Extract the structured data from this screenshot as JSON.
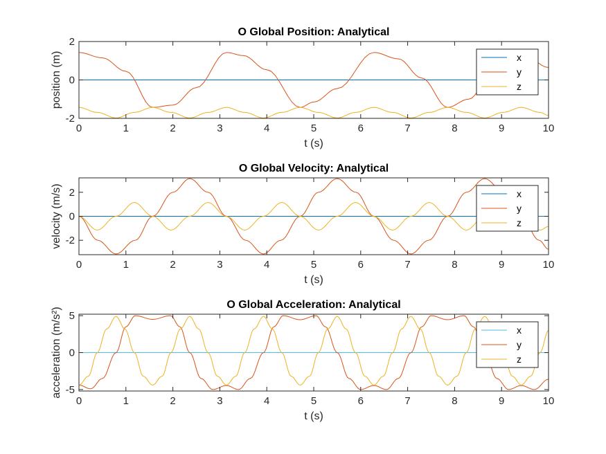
{
  "colors": {
    "x": "#0072BD",
    "y": "#D95319",
    "z": "#EDB120",
    "x_accel": "#4DBEEE",
    "axes": "#262626",
    "background": "#ffffff"
  },
  "chart_data": [
    {
      "type": "line",
      "title": "O Global Position: Analytical",
      "xlabel": "t (s)",
      "ylabel": "position (m)",
      "xlim": [
        0,
        10
      ],
      "ylim": [
        -2,
        2
      ],
      "xticks": [
        0,
        1,
        2,
        3,
        4,
        5,
        6,
        7,
        8,
        9,
        10
      ],
      "yticks": [
        -2,
        0,
        2
      ],
      "xtick_labels": [
        "0",
        "1",
        "2",
        "3",
        "4",
        "5",
        "6",
        "7",
        "8",
        "9",
        "10"
      ],
      "ytick_labels": [
        "-2",
        "0",
        "2"
      ],
      "legend": {
        "entries": [
          "x",
          "y",
          "z"
        ],
        "placement": "top-right"
      },
      "series": [
        {
          "name": "x",
          "x": [
            0,
            10
          ],
          "y": [
            0,
            0
          ]
        },
        {
          "name": "y",
          "x": [
            0,
            0.5,
            1.0,
            1.57,
            2.0,
            2.5,
            3.14,
            3.5,
            4.0,
            4.71,
            5.0,
            5.5,
            6.28,
            6.8,
            7.3,
            7.85,
            8.3,
            8.8,
            9.42,
            10.0
          ],
          "y": [
            1.43,
            1.15,
            0.45,
            -1.43,
            -1.31,
            -0.4,
            1.43,
            1.27,
            0.53,
            -1.43,
            -1.15,
            -0.45,
            1.43,
            1.1,
            0.1,
            -1.43,
            -1.0,
            0.3,
            1.43,
            0.65
          ]
        },
        {
          "name": "z",
          "x": [
            0,
            0.39,
            0.79,
            1.18,
            1.57,
            1.96,
            2.36,
            2.75,
            3.14,
            3.53,
            3.93,
            4.32,
            4.71,
            5.1,
            5.5,
            5.89,
            6.28,
            6.68,
            7.07,
            7.46,
            7.85,
            8.25,
            8.64,
            9.03,
            9.42,
            9.82,
            10.0
          ],
          "y": [
            -1.43,
            -1.69,
            -1.98,
            -1.69,
            -1.43,
            -1.69,
            -1.98,
            -1.69,
            -1.43,
            -1.69,
            -1.98,
            -1.69,
            -1.43,
            -1.69,
            -1.98,
            -1.69,
            -1.43,
            -1.69,
            -1.98,
            -1.69,
            -1.43,
            -1.69,
            -1.98,
            -1.69,
            -1.43,
            -1.69,
            -1.85
          ]
        }
      ]
    },
    {
      "type": "line",
      "title": "O Global Velocity: Analytical",
      "xlabel": "t (s)",
      "ylabel": "velocity (m/s)",
      "xlim": [
        0,
        10
      ],
      "ylim": [
        -3.2,
        3.2
      ],
      "xticks": [
        0,
        1,
        2,
        3,
        4,
        5,
        6,
        7,
        8,
        9,
        10
      ],
      "yticks": [
        -2,
        0,
        2
      ],
      "xtick_labels": [
        "0",
        "1",
        "2",
        "3",
        "4",
        "5",
        "6",
        "7",
        "8",
        "9",
        "10"
      ],
      "ytick_labels": [
        "-2",
        "0",
        "2"
      ],
      "legend": {
        "entries": [
          "x",
          "y",
          "z"
        ],
        "placement": "top-right"
      },
      "series": [
        {
          "name": "x",
          "x": [
            0,
            10
          ],
          "y": [
            0,
            0
          ]
        },
        {
          "name": "y",
          "x": [
            0,
            0.4,
            0.79,
            1.2,
            1.57,
            2.0,
            2.36,
            2.75,
            3.14,
            3.55,
            3.93,
            4.3,
            4.71,
            5.1,
            5.5,
            5.9,
            6.28,
            6.7,
            7.07,
            7.45,
            7.85,
            8.25,
            8.64,
            9.05,
            9.42,
            9.8,
            10.0
          ],
          "y": [
            0,
            -2.0,
            -3.14,
            -2.0,
            0,
            2.0,
            3.14,
            2.0,
            0,
            -2.0,
            -3.14,
            -2.0,
            0,
            2.0,
            3.14,
            2.0,
            0,
            -2.0,
            -3.14,
            -2.0,
            0,
            2.0,
            3.14,
            2.0,
            0,
            -2.0,
            -2.75
          ]
        },
        {
          "name": "z",
          "x": [
            0,
            0.39,
            0.79,
            1.18,
            1.57,
            1.96,
            2.36,
            2.75,
            3.14,
            3.53,
            3.93,
            4.32,
            4.71,
            5.1,
            5.5,
            5.89,
            6.28,
            6.68,
            7.07,
            7.46,
            7.85,
            8.25,
            8.64,
            9.03,
            9.42,
            9.82,
            10.0
          ],
          "y": [
            0,
            -1.15,
            0,
            1.15,
            0,
            -1.15,
            0,
            1.15,
            0,
            -1.15,
            0,
            1.15,
            0,
            -1.15,
            0,
            1.15,
            0,
            -1.15,
            0,
            1.15,
            0,
            -1.15,
            0,
            1.15,
            0,
            -1.15,
            -0.85
          ]
        }
      ]
    },
    {
      "type": "line",
      "title": "O Global Acceleration: Analytical",
      "xlabel": "t (s)",
      "ylabel": "acceleration (m/s²)",
      "xlim": [
        0,
        10
      ],
      "ylim": [
        -5.2,
        5.2
      ],
      "xticks": [
        0,
        1,
        2,
        3,
        4,
        5,
        6,
        7,
        8,
        9,
        10
      ],
      "yticks": [
        -5,
        0,
        5
      ],
      "xtick_labels": [
        "0",
        "1",
        "2",
        "3",
        "4",
        "5",
        "6",
        "7",
        "8",
        "9",
        "10"
      ],
      "ytick_labels": [
        "-5",
        "0",
        "5"
      ],
      "legend": {
        "entries": [
          "x",
          "y",
          "z"
        ],
        "placement": "top-right"
      },
      "series": [
        {
          "name": "x",
          "x": [
            0,
            10
          ],
          "y": [
            0,
            0
          ]
        },
        {
          "name": "y",
          "x": [
            0,
            0.25,
            0.5,
            0.79,
            1.0,
            1.2,
            1.57,
            1.95,
            2.15,
            2.36,
            2.6,
            2.85,
            3.14,
            3.4,
            3.65,
            3.93,
            4.15,
            4.35,
            4.71,
            5.05,
            5.25,
            5.5,
            5.75,
            6.0,
            6.28,
            6.55,
            6.8,
            7.07,
            7.3,
            7.5,
            7.85,
            8.2,
            8.4,
            8.64,
            8.9,
            9.15,
            9.42,
            9.7,
            10.0
          ],
          "y": [
            -4.4,
            -4.9,
            -3.5,
            0,
            3.5,
            5.0,
            4.5,
            5.0,
            3.5,
            0,
            -3.5,
            -5.0,
            -4.45,
            -5.0,
            -3.5,
            0,
            3.5,
            5.0,
            4.45,
            5.0,
            3.5,
            0,
            -3.5,
            -5.0,
            -4.45,
            -5.0,
            -3.5,
            0,
            3.5,
            5.0,
            4.45,
            5.0,
            3.5,
            0,
            -3.5,
            -5.0,
            -4.45,
            -5.0,
            -3.6
          ]
        },
        {
          "name": "z",
          "x": [
            0,
            0.2,
            0.39,
            0.59,
            0.79,
            0.98,
            1.18,
            1.37,
            1.57,
            1.77,
            1.96,
            2.16,
            2.36,
            2.55,
            2.75,
            2.95,
            3.14,
            3.34,
            3.53,
            3.73,
            3.93,
            4.12,
            4.32,
            4.52,
            4.71,
            4.91,
            5.1,
            5.3,
            5.5,
            5.69,
            5.89,
            6.09,
            6.28,
            6.48,
            6.68,
            6.87,
            7.07,
            7.27,
            7.46,
            7.66,
            7.85,
            8.05,
            8.25,
            8.44,
            8.64,
            8.84,
            9.03,
            9.23,
            9.42,
            9.62,
            9.82,
            10.0
          ],
          "y": [
            -4.4,
            -3.2,
            0,
            3.2,
            4.9,
            3.2,
            0,
            -3.2,
            -4.4,
            -3.2,
            0,
            3.2,
            4.9,
            3.2,
            0,
            -3.2,
            -4.4,
            -3.2,
            0,
            3.2,
            4.9,
            3.2,
            0,
            -3.2,
            -4.4,
            -3.2,
            0,
            3.2,
            4.9,
            3.2,
            0,
            -3.2,
            -4.4,
            -3.2,
            0,
            3.2,
            4.9,
            3.2,
            0,
            -3.2,
            -4.4,
            -3.2,
            0,
            3.2,
            4.9,
            3.2,
            0,
            -3.2,
            -4.4,
            -3.2,
            0,
            3.0
          ]
        }
      ]
    }
  ]
}
